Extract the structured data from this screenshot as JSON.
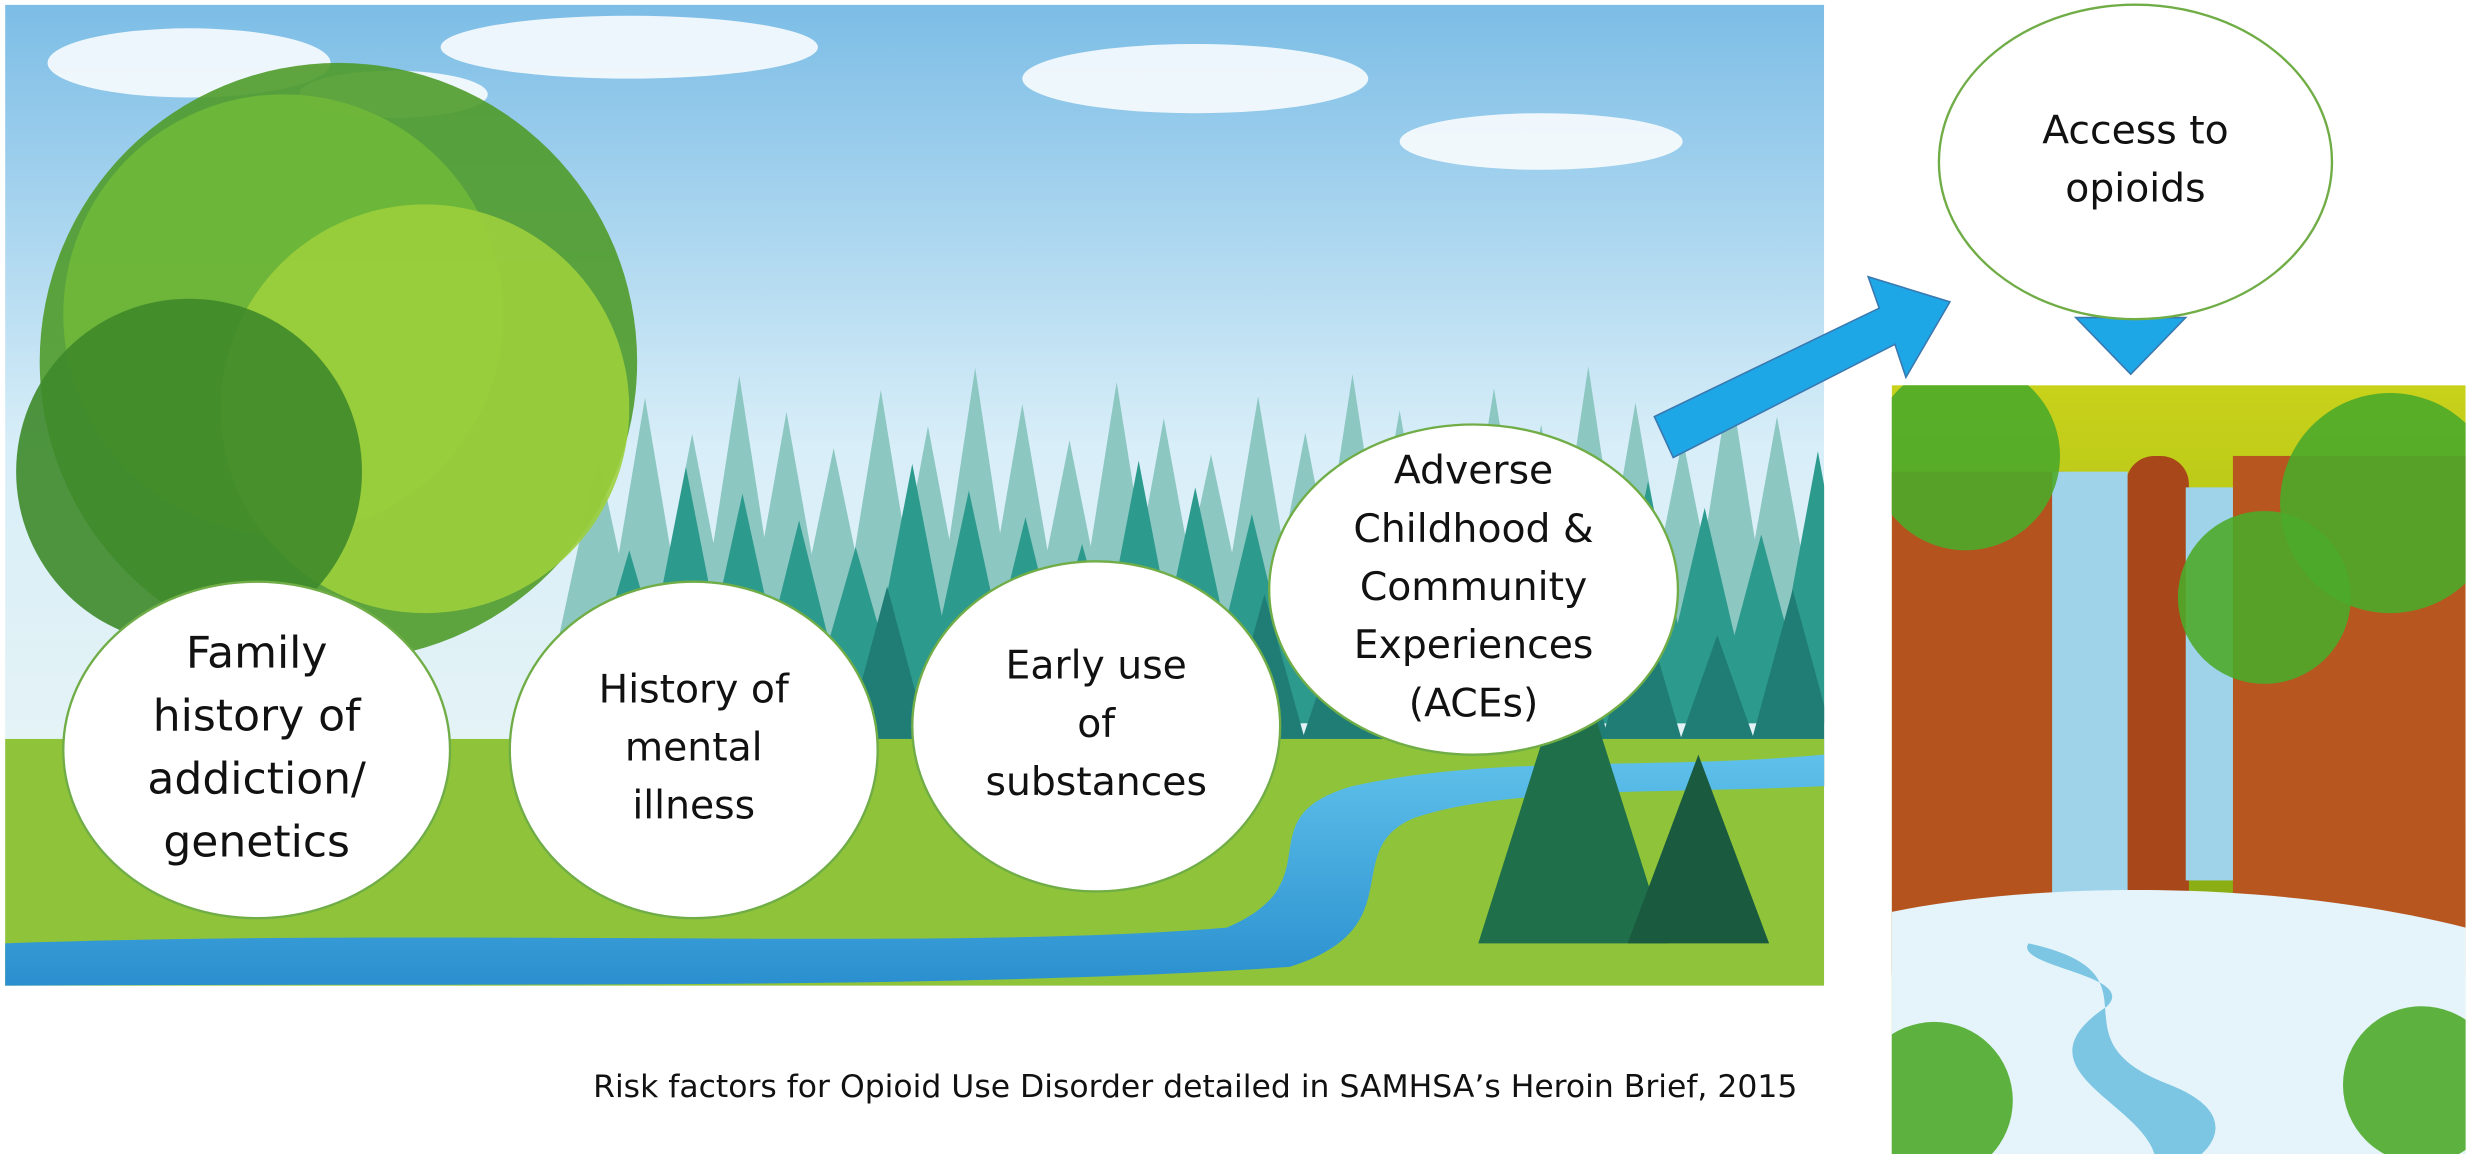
{
  "nodes": [
    {
      "lines": [
        "Family",
        "history of",
        "addiction/",
        "genetics"
      ]
    },
    {
      "lines": [
        "History of",
        "mental",
        "illness"
      ]
    },
    {
      "lines": [
        "Early use",
        "of",
        "substances"
      ]
    },
    {
      "lines": [
        "Adverse",
        "Childhood &",
        "Community",
        "Experiences",
        "(ACEs)"
      ]
    },
    {
      "lines": [
        "Access to",
        "opioids"
      ]
    }
  ],
  "caption": "Risk factors for Opioid Use Disorder detailed in SAMHSA’s Heroin Brief, 2015"
}
